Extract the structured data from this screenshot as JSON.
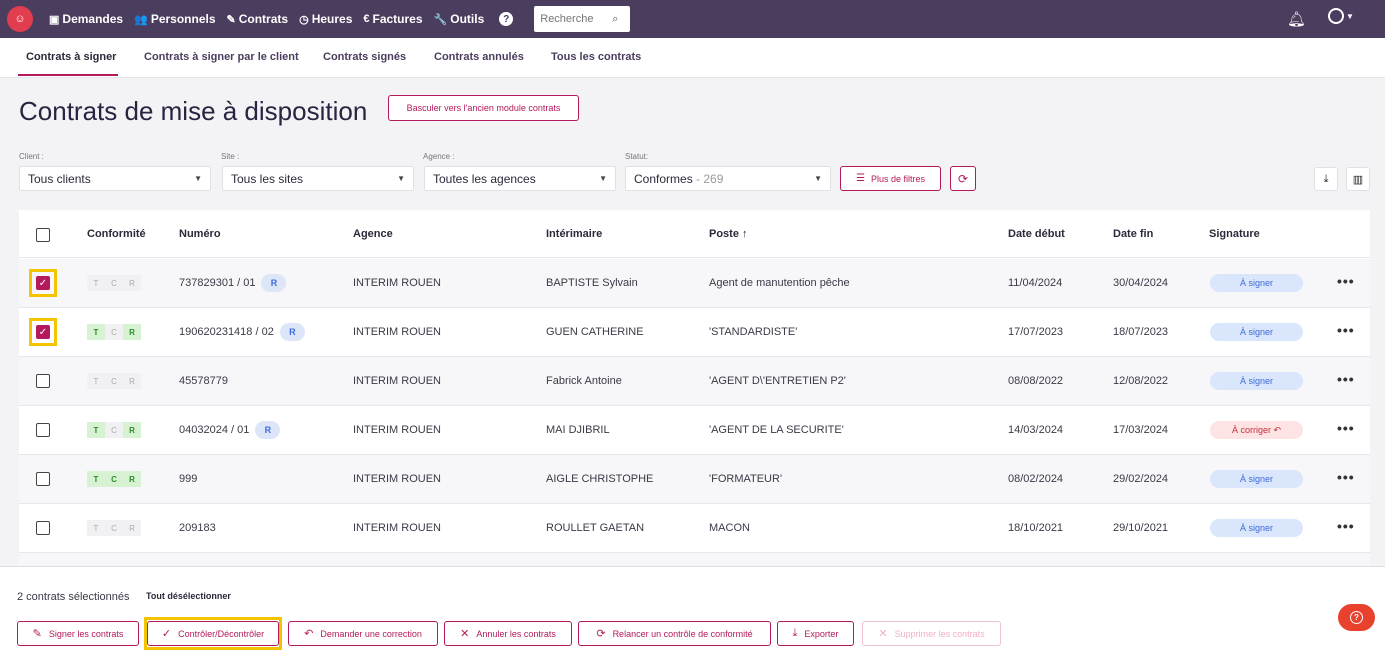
{
  "nav": {
    "items": [
      {
        "label": "Demandes",
        "icon": "id-card-icon",
        "glyph": "▣"
      },
      {
        "label": "Personnels",
        "icon": "users-icon",
        "glyph": "👥"
      },
      {
        "label": "Contrats",
        "icon": "edit-icon",
        "glyph": "✎"
      },
      {
        "label": "Heures",
        "icon": "clock-icon",
        "glyph": "◷"
      },
      {
        "label": "Factures",
        "icon": "euro-icon",
        "glyph": "€"
      },
      {
        "label": "Outils",
        "icon": "wrench-icon",
        "glyph": "🔧"
      }
    ],
    "help_glyph": "?",
    "search_placeholder": "Recherche"
  },
  "tabs": [
    "Contrats à signer",
    "Contrats à signer par le client",
    "Contrats signés",
    "Contrats annulés",
    "Tous les contrats"
  ],
  "page": {
    "title": "Contrats de mise à disposition",
    "old_module_button": "Basculer vers l'ancien module contrats"
  },
  "filters": {
    "client_label": "Client :",
    "client_value": "Tous clients",
    "site_label": "Site :",
    "site_value": "Tous les sites",
    "agence_label": "Agence :",
    "agence_value": "Toutes les agences",
    "statut_label": "Statut:",
    "statut_value": "Conformes",
    "statut_count": "- 269",
    "more_filters": "Plus de filtres"
  },
  "table": {
    "headers": {
      "conformite": "Conformité",
      "numero": "Numéro",
      "agence": "Agence",
      "interimaire": "Intérimaire",
      "poste": "Poste ↑",
      "date_debut": "Date début",
      "date_fin": "Date fin",
      "signature": "Signature"
    },
    "tcr_letters": [
      "T",
      "C",
      "R"
    ],
    "rows": [
      {
        "checked": true,
        "tcr": [
          false,
          false,
          false
        ],
        "numero": "737829301 / 01",
        "badge": "R",
        "agence": "INTERIM ROUEN",
        "interimaire": "BAPTISTE Sylvain",
        "poste": "Agent de manutention pêche",
        "date_debut": "11/04/2024",
        "date_fin": "30/04/2024",
        "signature": "À signer",
        "sig_type": "to-sign"
      },
      {
        "checked": true,
        "tcr": [
          true,
          false,
          true
        ],
        "numero": "190620231418 / 02",
        "badge": "R",
        "agence": "INTERIM ROUEN",
        "interimaire": "GUEN CATHERINE",
        "poste": "'STANDARDISTE'",
        "date_debut": "17/07/2023",
        "date_fin": "18/07/2023",
        "signature": "À signer",
        "sig_type": "to-sign"
      },
      {
        "checked": false,
        "tcr": [
          false,
          false,
          false
        ],
        "numero": "45578779",
        "badge": "",
        "agence": "INTERIM ROUEN",
        "interimaire": "Fabrick Antoine",
        "poste": "'AGENT D\\'ENTRETIEN P2'",
        "date_debut": "08/08/2022",
        "date_fin": "12/08/2022",
        "signature": "À signer",
        "sig_type": "to-sign"
      },
      {
        "checked": false,
        "tcr": [
          true,
          false,
          true
        ],
        "numero": "04032024 / 01",
        "badge": "R",
        "agence": "INTERIM ROUEN",
        "interimaire": "MAI DJIBRIL",
        "poste": "'AGENT DE LA SECURITE'",
        "date_debut": "14/03/2024",
        "date_fin": "17/03/2024",
        "signature": "À corriger ↶",
        "sig_type": "to-fix"
      },
      {
        "checked": false,
        "tcr": [
          true,
          true,
          true
        ],
        "numero": "999",
        "badge": "",
        "agence": "INTERIM ROUEN",
        "interimaire": "AIGLE CHRISTOPHE",
        "poste": "'FORMATEUR'",
        "date_debut": "08/02/2024",
        "date_fin": "29/02/2024",
        "signature": "À signer",
        "sig_type": "to-sign"
      },
      {
        "checked": false,
        "tcr": [
          false,
          false,
          false
        ],
        "numero": "209183",
        "badge": "",
        "agence": "INTERIM ROUEN",
        "interimaire": "ROULLET GAETAN",
        "poste": "MACON",
        "date_debut": "18/10/2021",
        "date_fin": "29/10/2021",
        "signature": "À signer",
        "sig_type": "to-sign"
      }
    ]
  },
  "footer": {
    "selected_count": "2 contrats sélectionnés",
    "deselect_all": "Tout désélectionner",
    "actions": [
      {
        "label": "Signer les contrats",
        "glyph": "✎",
        "icon": "pen-icon",
        "disabled": false
      },
      {
        "label": "Contrôler/Décontrôler",
        "glyph": "✓",
        "icon": "check-icon",
        "disabled": false
      },
      {
        "label": "Demander une correction",
        "glyph": "↶",
        "icon": "undo-icon",
        "disabled": false
      },
      {
        "label": "Annuler les contrats",
        "glyph": "✕",
        "icon": "close-icon",
        "disabled": false
      },
      {
        "label": "Relancer un contrôle de conformité",
        "glyph": "⟳",
        "icon": "sync-icon",
        "disabled": false
      },
      {
        "label": "Exporter",
        "glyph": "⤓",
        "icon": "download-icon",
        "disabled": false
      },
      {
        "label": "Supprimer les contrats",
        "glyph": "✕",
        "icon": "close-icon",
        "disabled": true
      }
    ]
  },
  "colors": {
    "topbar": "#4b3d5e",
    "accent": "#b3195b",
    "highlight": "#f5c400",
    "logo": "#e23c4f"
  }
}
